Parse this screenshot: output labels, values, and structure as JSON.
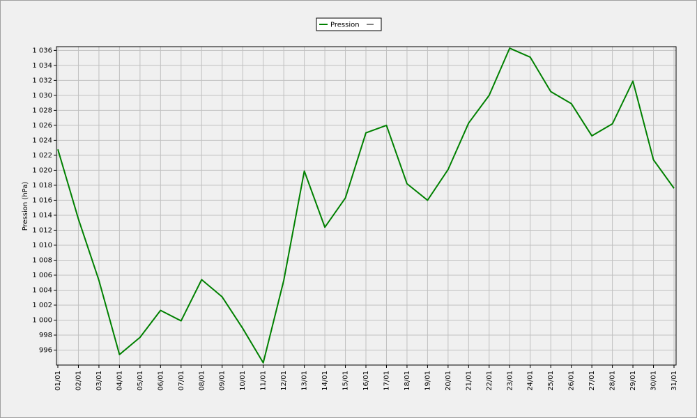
{
  "chart_data": {
    "type": "line",
    "y_label": "Pression (hPa)",
    "categories": [
      "01/01",
      "02/01",
      "03/01",
      "04/01",
      "05/01",
      "06/01",
      "07/01",
      "08/01",
      "09/01",
      "10/01",
      "11/01",
      "12/01",
      "13/01",
      "14/01",
      "15/01",
      "16/01",
      "17/01",
      "18/01",
      "19/01",
      "20/01",
      "21/01",
      "22/01",
      "23/01",
      "24/01",
      "25/01",
      "26/01",
      "27/01",
      "28/01",
      "29/01",
      "30/01",
      "31/01"
    ],
    "series": [
      {
        "name": "Pression",
        "color": "#008000",
        "values": [
          1022.8,
          1013.5,
          1005.3,
          995.4,
          997.7,
          1001.3,
          999.9,
          1005.4,
          1003.1,
          998.9,
          994.3,
          1005.3,
          1019.9,
          1012.4,
          1016.3,
          1025.0,
          1026.0,
          1018.2,
          1016.0,
          1020.1,
          1026.3,
          1030.0,
          1036.3,
          1035.1,
          1030.5,
          1028.9,
          1024.6,
          1026.2,
          1031.9,
          1021.4,
          1017.6
        ]
      }
    ],
    "ylim": [
      994,
      1036.5
    ],
    "yticks": [
      996,
      998,
      {
        "value": 1000,
        "label": "1 000"
      },
      {
        "value": 1002,
        "label": "1 002"
      },
      {
        "value": 1004,
        "label": "1 004"
      },
      {
        "value": 1006,
        "label": "1 006"
      },
      {
        "value": 1008,
        "label": "1 008"
      },
      {
        "value": 1010,
        "label": "1 010"
      },
      {
        "value": 1012,
        "label": "1 012"
      },
      {
        "value": 1014,
        "label": "1 014"
      },
      {
        "value": 1016,
        "label": "1 016"
      },
      {
        "value": 1018,
        "label": "1 018"
      },
      {
        "value": 1020,
        "label": "1 020"
      },
      {
        "value": 1022,
        "label": "1 022"
      },
      {
        "value": 1024,
        "label": "1 024"
      },
      {
        "value": 1026,
        "label": "1 026"
      },
      {
        "value": 1028,
        "label": "1 028"
      },
      {
        "value": 1030,
        "label": "1 030"
      },
      {
        "value": 1032,
        "label": "1 032"
      },
      {
        "value": 1034,
        "label": "1 034"
      },
      {
        "value": 1036,
        "label": "1 036"
      }
    ],
    "grid": true
  }
}
